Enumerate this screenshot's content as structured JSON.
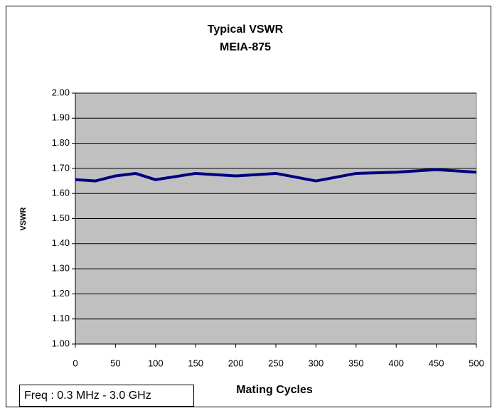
{
  "chart_data": {
    "type": "line",
    "title": "Typical VSWR",
    "subtitle": "MEIA-875",
    "x_label": "Mating Cycles",
    "y_label": "VSWR",
    "annotation": "Freq : 0.3 MHz - 3.0 GHz",
    "x": [
      0,
      25,
      50,
      75,
      100,
      150,
      200,
      250,
      300,
      350,
      400,
      450,
      500
    ],
    "series": [
      {
        "name": "VSWR",
        "color": "#000080",
        "values": [
          1.655,
          1.65,
          1.67,
          1.68,
          1.655,
          1.68,
          1.67,
          1.68,
          1.65,
          1.68,
          1.685,
          1.695,
          1.685
        ]
      }
    ],
    "xlim": [
      0,
      500
    ],
    "xticks": [
      0,
      50,
      100,
      150,
      200,
      250,
      300,
      350,
      400,
      450,
      500
    ],
    "ylim": [
      1,
      2
    ],
    "yticks": [
      {
        "value": 1,
        "label": "1.00"
      },
      {
        "value": 1.1,
        "label": "1.10"
      },
      {
        "value": 1.2,
        "label": "1.20"
      },
      {
        "value": 1.3,
        "label": "1.30"
      },
      {
        "value": 1.4,
        "label": "1.40"
      },
      {
        "value": 1.5,
        "label": "1.50"
      },
      {
        "value": 1.6,
        "label": "1.60"
      },
      {
        "value": 1.7,
        "label": "1.70"
      },
      {
        "value": 1.8,
        "label": "1.80"
      },
      {
        "value": 1.9,
        "label": "1.90"
      },
      {
        "value": 2,
        "label": "2.00"
      }
    ],
    "grid": true,
    "plot_background": "#c0c0c0"
  }
}
